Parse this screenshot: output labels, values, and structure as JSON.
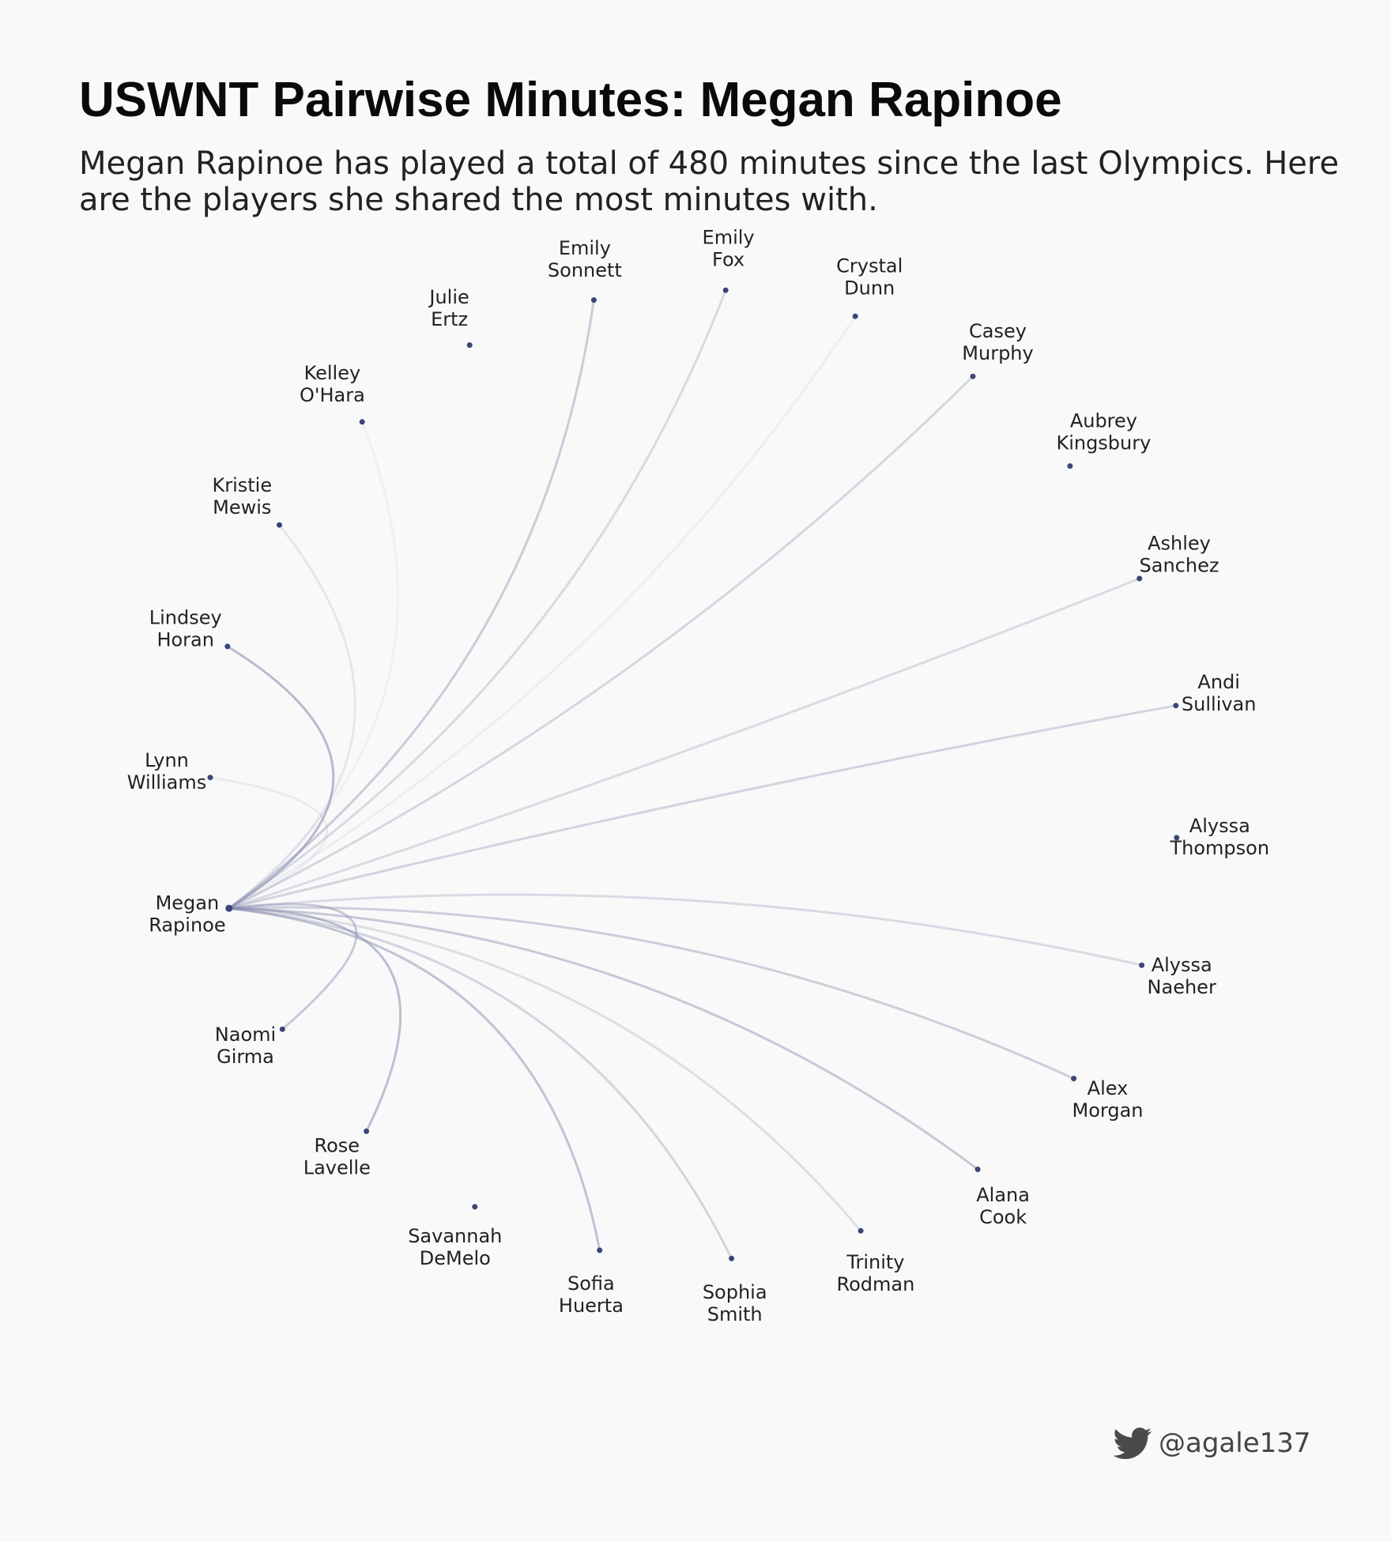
{
  "header": {
    "title": "USWNT Pairwise Minutes: Megan Rapinoe",
    "subtitle": "Megan Rapinoe has played a total of 480 minutes since the last Olympics. Here are the players she shared the most minutes with."
  },
  "colors": {
    "background": "#f9f9f9",
    "node": "#3b4577",
    "link": "#8a8fb0",
    "text": "#222222"
  },
  "network": {
    "focus": "megan-rapinoe",
    "nodes": [
      {
        "id": "megan-rapinoe",
        "label": [
          "Megan",
          "Rapinoe"
        ]
      },
      {
        "id": "lynn-williams",
        "label": [
          "Lynn",
          "Williams"
        ]
      },
      {
        "id": "lindsey-horan",
        "label": [
          "Lindsey",
          "Horan"
        ]
      },
      {
        "id": "kristie-mewis",
        "label": [
          "Kristie",
          "Mewis"
        ]
      },
      {
        "id": "kelley-ohara",
        "label": [
          "Kelley",
          "O'Hara"
        ]
      },
      {
        "id": "julie-ertz",
        "label": [
          "Julie",
          "Ertz"
        ]
      },
      {
        "id": "emily-sonnett",
        "label": [
          "Emily",
          "Sonnett"
        ]
      },
      {
        "id": "emily-fox",
        "label": [
          "Emily",
          "Fox"
        ]
      },
      {
        "id": "crystal-dunn",
        "label": [
          "Crystal",
          "Dunn"
        ]
      },
      {
        "id": "casey-murphy",
        "label": [
          "Casey",
          "Murphy"
        ]
      },
      {
        "id": "aubrey-kingsbury",
        "label": [
          "Aubrey",
          "Kingsbury"
        ]
      },
      {
        "id": "ashley-sanchez",
        "label": [
          "Ashley",
          "Sanchez"
        ]
      },
      {
        "id": "andi-sullivan",
        "label": [
          "Andi",
          "Sullivan"
        ]
      },
      {
        "id": "alyssa-thompson",
        "label": [
          "Alyssa",
          "Thompson"
        ]
      },
      {
        "id": "alyssa-naeher",
        "label": [
          "Alyssa",
          "Naeher"
        ]
      },
      {
        "id": "alex-morgan",
        "label": [
          "Alex",
          "Morgan"
        ]
      },
      {
        "id": "alana-cook",
        "label": [
          "Alana",
          "Cook"
        ]
      },
      {
        "id": "trinity-rodman",
        "label": [
          "Trinity",
          "Rodman"
        ]
      },
      {
        "id": "sophia-smith",
        "label": [
          "Sophia",
          "Smith"
        ]
      },
      {
        "id": "sofia-huerta",
        "label": [
          "Sofia",
          "Huerta"
        ]
      },
      {
        "id": "savannah-demelo",
        "label": [
          "Savannah",
          "DeMelo"
        ]
      },
      {
        "id": "rose-lavelle",
        "label": [
          "Rose",
          "Lavelle"
        ]
      },
      {
        "id": "naomi-girma",
        "label": [
          "Naomi",
          "Girma"
        ]
      }
    ],
    "links": [
      {
        "target": "naomi-girma",
        "strength": 0.45
      },
      {
        "target": "rose-lavelle",
        "strength": 0.55
      },
      {
        "target": "sofia-huerta",
        "strength": 0.5
      },
      {
        "target": "sophia-smith",
        "strength": 0.35
      },
      {
        "target": "trinity-rodman",
        "strength": 0.25
      },
      {
        "target": "alana-cook",
        "strength": 0.45
      },
      {
        "target": "alex-morgan",
        "strength": 0.4
      },
      {
        "target": "alyssa-naeher",
        "strength": 0.28
      },
      {
        "target": "andi-sullivan",
        "strength": 0.35
      },
      {
        "target": "ashley-sanchez",
        "strength": 0.28
      },
      {
        "target": "casey-murphy",
        "strength": 0.33
      },
      {
        "target": "crystal-dunn",
        "strength": 0.1
      },
      {
        "target": "emily-fox",
        "strength": 0.3
      },
      {
        "target": "emily-sonnett",
        "strength": 0.42
      },
      {
        "target": "kelley-ohara",
        "strength": 0.08
      },
      {
        "target": "kristie-mewis",
        "strength": 0.18
      },
      {
        "target": "lindsey-horan",
        "strength": 0.6
      },
      {
        "target": "lynn-williams",
        "strength": 0.12
      }
    ]
  },
  "credit": {
    "icon": "twitter-bird-icon",
    "handle": "@agale137"
  }
}
